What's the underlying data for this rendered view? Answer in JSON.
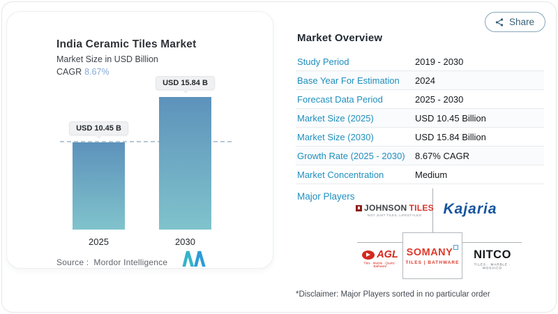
{
  "colors": {
    "accent_blue": "#1f8fbe",
    "cagr_blue": "#84a9d8",
    "bar_gradient_top": "#5d92bb",
    "bar_gradient_bottom": "#80c3cc",
    "kajaria_blue": "#15549f",
    "brand_red": "#d5281e",
    "share_text": "#39607a"
  },
  "chart_card": {
    "title": "India Ceramic Tiles Market",
    "subtitle": "Market Size in USD Billion",
    "cagr_label": "CAGR",
    "cagr_value": "8.67%",
    "source_label": "Source :",
    "source_value": "Mordor Intelligence"
  },
  "chart_data": {
    "type": "bar",
    "categories": [
      "2025",
      "2030"
    ],
    "values": [
      10.45,
      15.84
    ],
    "value_labels": [
      "USD 10.45 B",
      "USD 15.84 B"
    ],
    "unit": "USD Billion",
    "title": "India Ceramic Tiles Market",
    "ylabel": "Market Size in USD Billion",
    "cagr": "8.67%",
    "reference_line": 10.45,
    "ylim": [
      0,
      16
    ],
    "grid": "off",
    "legend": "none"
  },
  "header": {
    "share_label": "Share"
  },
  "overview": {
    "heading": "Market Overview",
    "rows": [
      {
        "label": "Study Period",
        "value": "2019 - 2030"
      },
      {
        "label": "Base Year For Estimation",
        "value": "2024"
      },
      {
        "label": "Forecast Data Period",
        "value": "2025 - 2030"
      },
      {
        "label": "Market Size (2025)",
        "value": "USD 10.45 Billion"
      },
      {
        "label": "Market Size (2030)",
        "value": "USD 15.84 Billion"
      },
      {
        "label": "Growth Rate (2025 - 2030)",
        "value": "8.67% CAGR"
      },
      {
        "label": "Market Concentration",
        "value": "Medium"
      }
    ],
    "major_players_label": "Major Players",
    "disclaimer": "*Disclaimer: Major Players sorted in no particular order"
  },
  "players": {
    "johnson": {
      "name": "JOHNSON",
      "name2": "TILES",
      "tagline": "NOT JUST TILES, LIFESTYLES'"
    },
    "kajaria": {
      "name": "Kajaria"
    },
    "agl": {
      "name": "AGL",
      "tagline": "Tiles · Marble · Quartz · Bathware"
    },
    "somany": {
      "name": "SOMANY",
      "tagline": "TILES | BATHWARE"
    },
    "nitco": {
      "name": "NITCO",
      "tagline": "TILES · MARBLE · MOSAICO"
    }
  }
}
